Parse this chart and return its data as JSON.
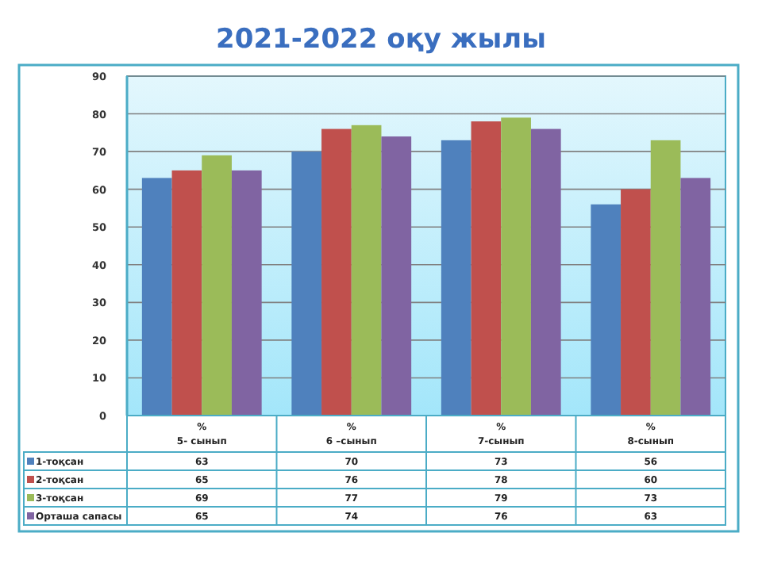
{
  "chart_data": {
    "type": "bar",
    "title": "2021-2022 оқу жылы",
    "categories": [
      "%\n5- сынып",
      "%\n6 –сынып",
      "%\n7-сынып",
      "%\n8-сынып"
    ],
    "series": [
      {
        "name": "1-тоқсан",
        "color": "#4f81bd",
        "values": [
          63,
          70,
          73,
          56
        ]
      },
      {
        "name": "2-тоқсан",
        "color": "#c0504d",
        "values": [
          65,
          76,
          78,
          60
        ]
      },
      {
        "name": "3-тоқсан",
        "color": "#9bbb59",
        "values": [
          69,
          77,
          79,
          73
        ]
      },
      {
        "name": "Орташа сапасы",
        "color": "#8064a2",
        "values": [
          65,
          74,
          76,
          63
        ]
      }
    ],
    "ylim": [
      0,
      90
    ],
    "yticks": [
      0,
      10,
      20,
      30,
      40,
      50,
      60,
      70,
      80,
      90
    ],
    "grid": "y",
    "legend": "bottom",
    "data_labels": true
  }
}
